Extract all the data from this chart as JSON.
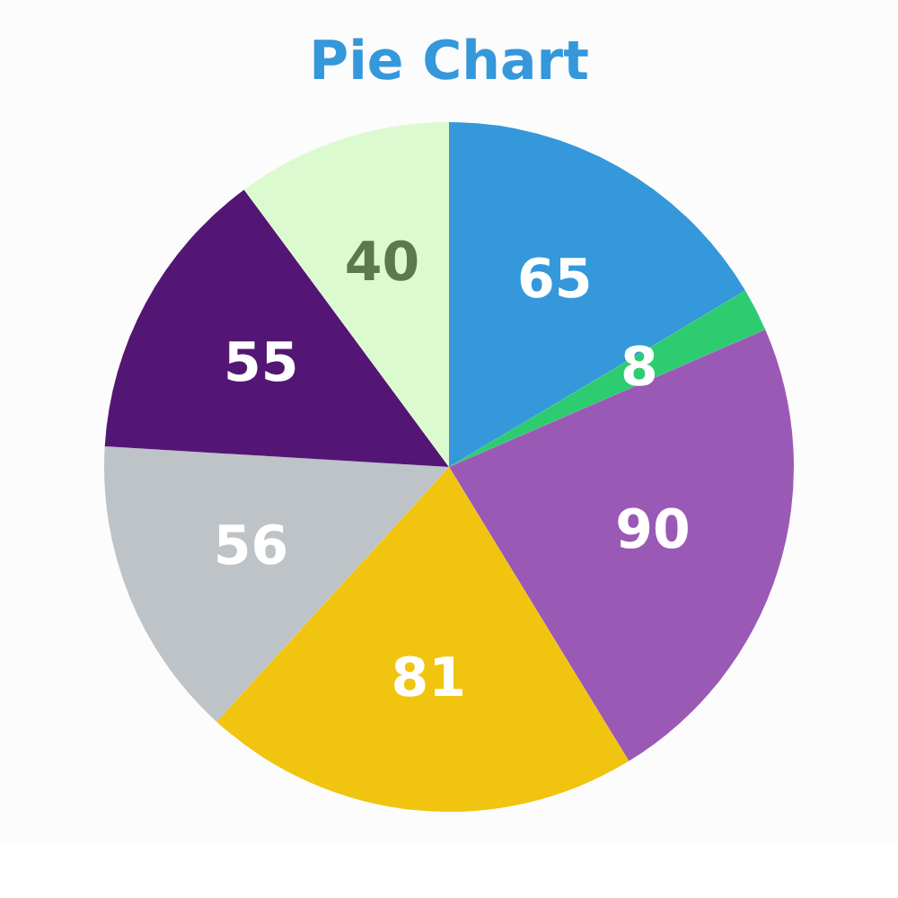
{
  "chart_data": {
    "type": "pie",
    "title": "Pie Chart",
    "categories": [
      null,
      null,
      null,
      null,
      null,
      null,
      null
    ],
    "values": [
      65,
      8,
      90,
      81,
      56,
      55,
      40
    ],
    "colors": [
      "#3498db",
      "#2ecc71",
      "#9b59b6",
      "#f1c40f",
      "#bdc3c7",
      "#541675",
      "#dcfad0"
    ],
    "data_labels": true,
    "legend": false
  }
}
